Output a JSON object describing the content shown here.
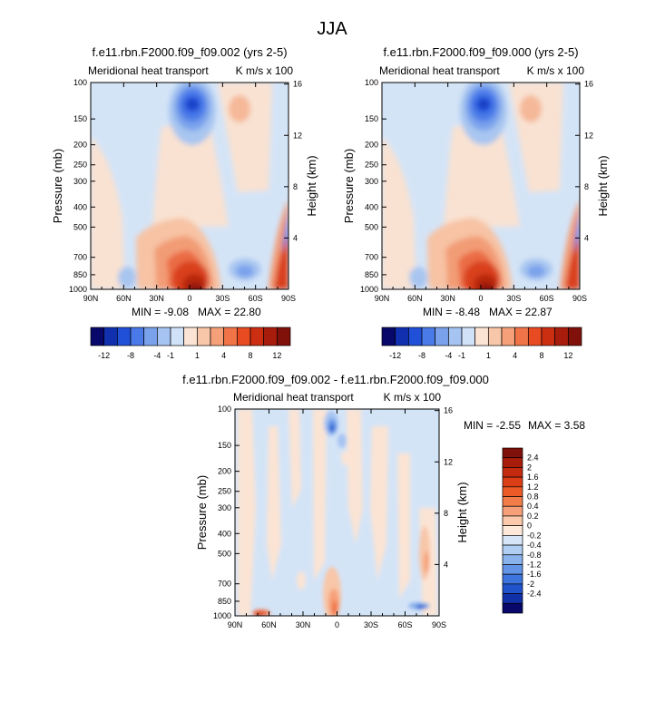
{
  "page_title": "JJA",
  "chart_data": [
    {
      "type": "heatmap",
      "title": "f.e11.rbn.F2000.f09_f09.002 (yrs 2-5)",
      "left_label": "Meridional heat transport",
      "right_label": "K m/s x 100",
      "xlabel": "",
      "ylabel": "Pressure (mb)",
      "ylabel_right": "Height (km)",
      "x_ticks": [
        "90N",
        "60N",
        "30N",
        "0",
        "30S",
        "60S",
        "90S"
      ],
      "y_ticks": [
        "100",
        "150",
        "200",
        "250",
        "300",
        "400",
        "500",
        "700",
        "850",
        "1000"
      ],
      "y_ticks_right": [
        "16",
        "12",
        "8",
        "4"
      ],
      "min_label": "MIN = -9.08",
      "max_label": "MAX = 22.80",
      "min": -9.08,
      "max": 22.8
    },
    {
      "type": "heatmap",
      "title": "f.e11.rbn.F2000.f09_f09.000 (yrs 2-5)",
      "left_label": "Meridional heat transport",
      "right_label": "K m/s x 100",
      "xlabel": "",
      "ylabel": "Pressure (mb)",
      "ylabel_right": "Height (km)",
      "x_ticks": [
        "90N",
        "60N",
        "30N",
        "0",
        "30S",
        "60S",
        "90S"
      ],
      "y_ticks": [
        "100",
        "150",
        "200",
        "250",
        "300",
        "400",
        "500",
        "700",
        "850",
        "1000"
      ],
      "y_ticks_right": [
        "16",
        "12",
        "8",
        "4"
      ],
      "min_label": "MIN = -8.48",
      "max_label": "MAX = 22.87",
      "min": -8.48,
      "max": 22.87
    },
    {
      "type": "heatmap",
      "title": "f.e11.rbn.F2000.f09_f09.002 - f.e11.rbn.F2000.f09_f09.000",
      "left_label": "Meridional heat transport",
      "right_label": "K m/s x 100",
      "xlabel": "",
      "ylabel": "Pressure (mb)",
      "ylabel_right": "Height (km)",
      "x_ticks": [
        "90N",
        "60N",
        "30N",
        "0",
        "30S",
        "60S",
        "90S"
      ],
      "y_ticks": [
        "100",
        "150",
        "200",
        "250",
        "300",
        "400",
        "500",
        "700",
        "850",
        "1000"
      ],
      "y_ticks_right": [
        "16",
        "12",
        "8",
        "4"
      ],
      "min_label": "MIN = -2.55",
      "max_label": "MAX = 3.58",
      "min": -2.55,
      "max": 3.58
    }
  ],
  "colorbar_main": {
    "labels": [
      "-12",
      "-8",
      "-4",
      "-1",
      "1",
      "4",
      "8",
      "12"
    ],
    "colors": [
      "#08086b",
      "#1030b0",
      "#2050d8",
      "#4a7ae8",
      "#7aa2ec",
      "#a6c4f2",
      "#d0e2f8",
      "#fbe4d4",
      "#f8c6a8",
      "#f5a078",
      "#f07448",
      "#e84a22",
      "#cc2e12",
      "#a81c0c",
      "#80100a"
    ]
  },
  "colorbar_diff": {
    "labels": [
      "2.4",
      "2",
      "1.6",
      "1.2",
      "0.8",
      "0.4",
      "0.2",
      "0",
      "-0.2",
      "-0.4",
      "-0.8",
      "-1.2",
      "-1.6",
      "-2",
      "-2.4"
    ],
    "colors": [
      "#80100a",
      "#a81c0c",
      "#c42a10",
      "#dc3e18",
      "#ec5a28",
      "#f27c4a",
      "#f6a07a",
      "#fac8aa",
      "#fde8da",
      "#d6e6f8",
      "#b0cdf2",
      "#8ab2ec",
      "#6494e6",
      "#3e74de",
      "#2052cc",
      "#1030a8",
      "#08086b"
    ]
  }
}
